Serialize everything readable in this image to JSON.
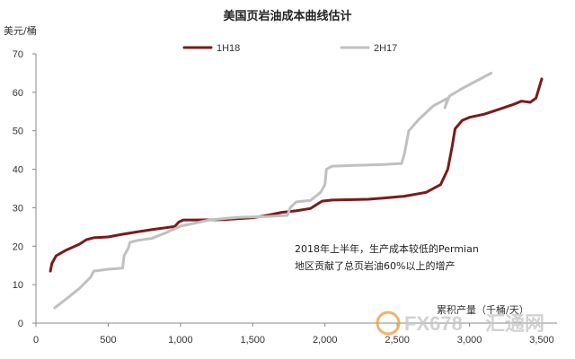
{
  "chart_data": {
    "type": "line",
    "title": "美国页岩油成本曲线估计",
    "ylabel": "美元/桶",
    "xlabel": "累积产量（千桶/天）",
    "xlim": [
      0,
      3500
    ],
    "ylim": [
      0,
      70
    ],
    "x_ticks": [
      "0",
      "500",
      "1,000",
      "1,500",
      "2,000",
      "2,500",
      "3,000",
      "3,500"
    ],
    "y_ticks": [
      "0",
      "10",
      "20",
      "30",
      "40",
      "50",
      "60",
      "70"
    ],
    "grid": false,
    "legend_position": "top",
    "annotation": [
      "2018年上半年，生产成本较低的Permian",
      "地区贡献了总页岩油60%以上的增产"
    ],
    "series": [
      {
        "name": "1H18",
        "color": "#7b1a1a",
        "points": [
          [
            100,
            13.5
          ],
          [
            110,
            15.5
          ],
          [
            140,
            17.5
          ],
          [
            200,
            18.8
          ],
          [
            300,
            20.5
          ],
          [
            350,
            21.7
          ],
          [
            400,
            22.2
          ],
          [
            500,
            22.4
          ],
          [
            600,
            23.1
          ],
          [
            700,
            23.7
          ],
          [
            800,
            24.3
          ],
          [
            900,
            24.8
          ],
          [
            960,
            25.1
          ],
          [
            990,
            26.3
          ],
          [
            1020,
            26.8
          ],
          [
            1100,
            26.8
          ],
          [
            1300,
            26.9
          ],
          [
            1500,
            27.4
          ],
          [
            1600,
            28.0
          ],
          [
            1700,
            28.8
          ],
          [
            1800,
            29.2
          ],
          [
            1900,
            29.8
          ],
          [
            1950,
            31.0
          ],
          [
            1980,
            31.7
          ],
          [
            2050,
            32.0
          ],
          [
            2200,
            32.1
          ],
          [
            2300,
            32.2
          ],
          [
            2400,
            32.5
          ],
          [
            2550,
            33.0
          ],
          [
            2700,
            34.0
          ],
          [
            2800,
            36.0
          ],
          [
            2850,
            40.0
          ],
          [
            2880,
            46.0
          ],
          [
            2900,
            50.5
          ],
          [
            2950,
            52.7
          ],
          [
            3000,
            53.5
          ],
          [
            3100,
            54.3
          ],
          [
            3200,
            55.5
          ],
          [
            3300,
            56.8
          ],
          [
            3360,
            57.7
          ],
          [
            3420,
            57.4
          ],
          [
            3460,
            58.5
          ],
          [
            3480,
            61.0
          ],
          [
            3500,
            63.5
          ]
        ]
      },
      {
        "name": "2H17",
        "color": "#c0c0c0",
        "points": [
          [
            130,
            4.0
          ],
          [
            200,
            6.0
          ],
          [
            300,
            9.0
          ],
          [
            380,
            12.0
          ],
          [
            400,
            13.5
          ],
          [
            500,
            14.0
          ],
          [
            600,
            14.3
          ],
          [
            610,
            17.5
          ],
          [
            640,
            19.5
          ],
          [
            650,
            21.0
          ],
          [
            700,
            21.5
          ],
          [
            800,
            22.0
          ],
          [
            900,
            23.5
          ],
          [
            1000,
            25.2
          ],
          [
            1100,
            26.0
          ],
          [
            1200,
            26.8
          ],
          [
            1400,
            27.5
          ],
          [
            1600,
            27.7
          ],
          [
            1740,
            28.0
          ],
          [
            1760,
            30.0
          ],
          [
            1800,
            31.5
          ],
          [
            1900,
            31.9
          ],
          [
            1970,
            34.0
          ],
          [
            2000,
            36.0
          ],
          [
            2010,
            40.0
          ],
          [
            2050,
            40.8
          ],
          [
            2200,
            41.0
          ],
          [
            2400,
            41.2
          ],
          [
            2530,
            41.5
          ],
          [
            2550,
            44.0
          ],
          [
            2580,
            50.0
          ],
          [
            2650,
            53.0
          ],
          [
            2750,
            56.5
          ],
          [
            2850,
            58.5
          ],
          [
            2830,
            56.0
          ],
          [
            2860,
            59.0
          ],
          [
            2950,
            61.0
          ],
          [
            3050,
            63.0
          ],
          [
            3150,
            65.0
          ]
        ]
      }
    ]
  },
  "watermark": {
    "text": "FX678",
    "text2": "汇通网"
  }
}
